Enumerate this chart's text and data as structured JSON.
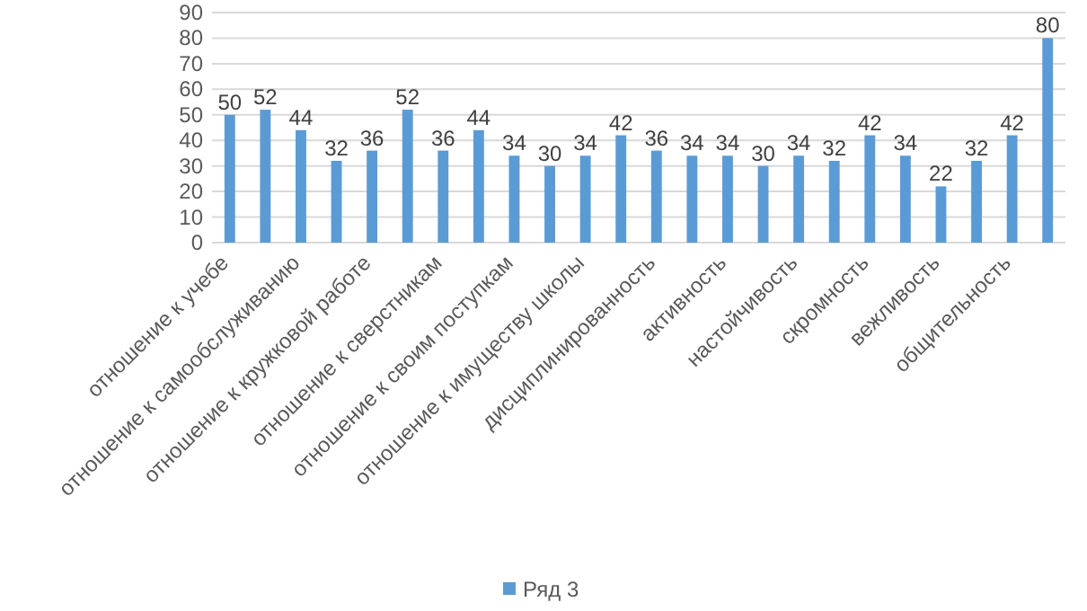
{
  "chart_data": {
    "type": "bar",
    "categories": [
      "отношение к учебе",
      null,
      "отношение к самообслуживанию",
      null,
      "отношение к кружковой работе",
      null,
      "отношение к сверстникам",
      null,
      "отношение к своим поступкам",
      null,
      "отношение к имуществу школы",
      null,
      "дисциплинированность",
      null,
      "активность",
      null,
      "настойчивость",
      null,
      "скромность",
      null,
      "вежливость",
      null,
      "общительность",
      null
    ],
    "series": [
      {
        "name": "Ряд 3",
        "color": "#5b9bd5",
        "values": [
          50,
          52,
          44,
          32,
          36,
          52,
          36,
          44,
          34,
          30,
          34,
          42,
          36,
          34,
          34,
          30,
          34,
          32,
          42,
          34,
          22,
          32,
          42,
          80
        ]
      }
    ],
    "ylim": [
      0,
      90
    ],
    "yticks": [
      0,
      10,
      20,
      30,
      40,
      50,
      60,
      70,
      80,
      90
    ],
    "grid": "y",
    "legend": "bottom",
    "data_labels": true
  }
}
